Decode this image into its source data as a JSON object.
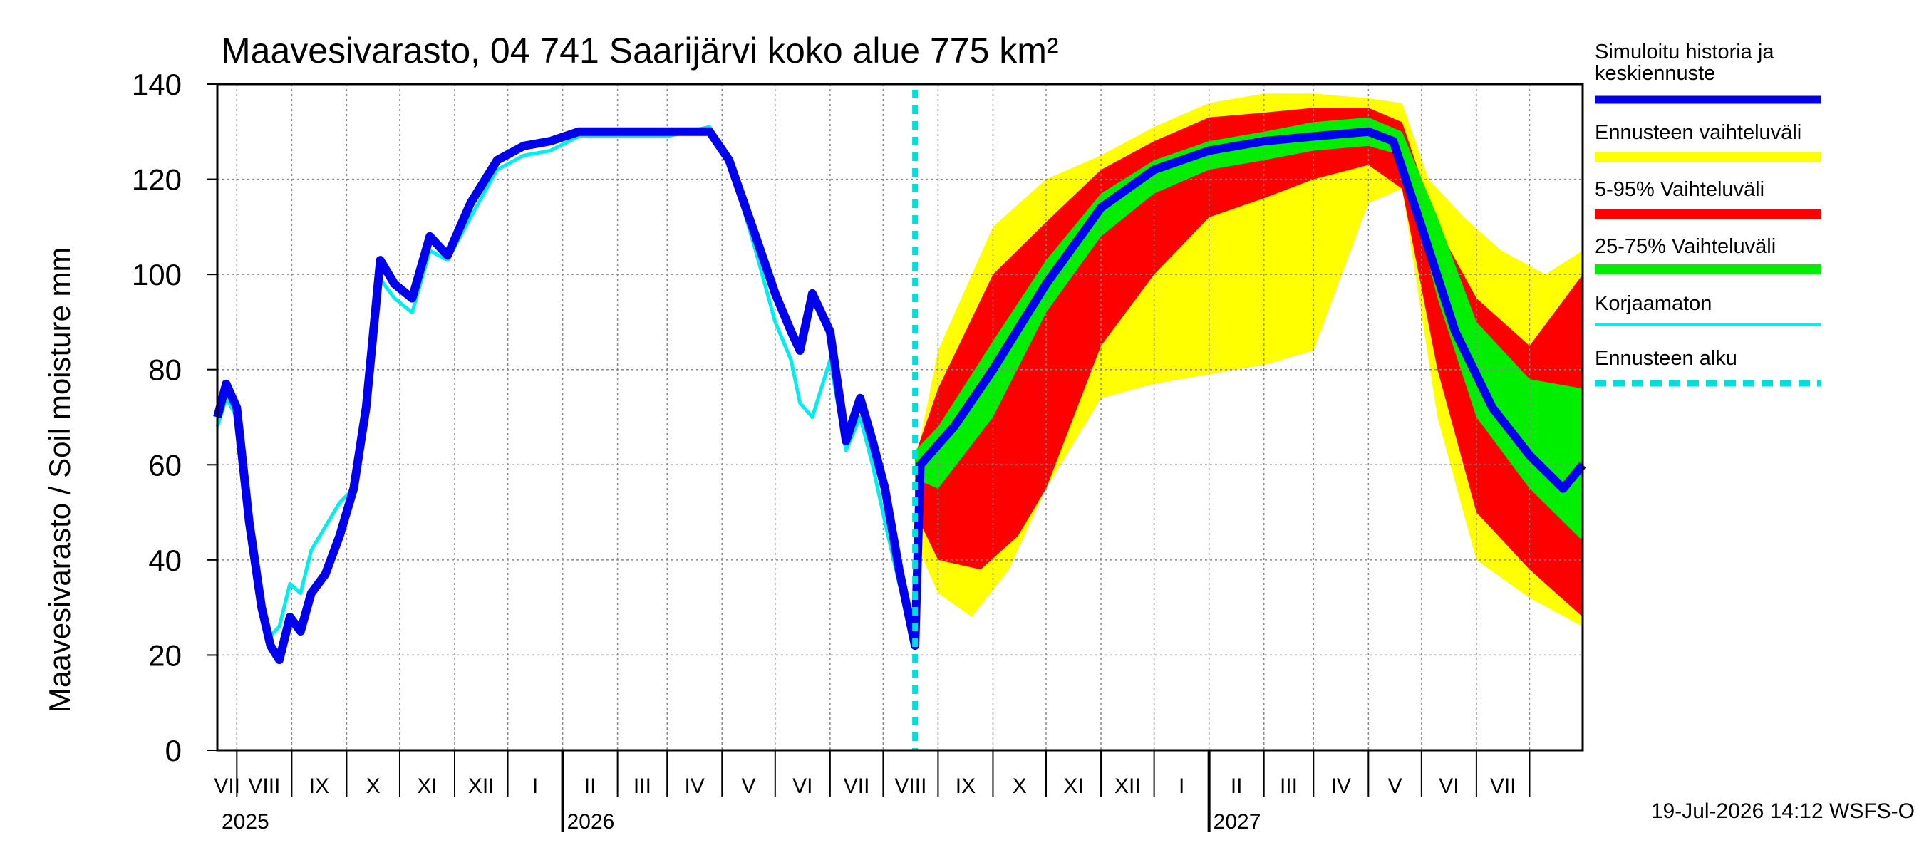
{
  "chart_data": {
    "type": "area",
    "title": "Maavesivarasto, 04 741 Saarijärvi koko alue 775 km²",
    "ylabel": "Maavesivarasto / Soil moisture   mm",
    "xlabel": "",
    "x_range": [
      "2025-06-20",
      "2027-07-31"
    ],
    "ylim": [
      0,
      140
    ],
    "yticks": [
      "0",
      "20",
      "40",
      "60",
      "80",
      "100",
      "120",
      "140"
    ],
    "months": [
      "VII",
      "VIII",
      "IX",
      "X",
      "XI",
      "XII",
      "I",
      "II",
      "III",
      "IV",
      "V",
      "VI",
      "VII",
      "VIII",
      "IX",
      "X",
      "XI",
      "XII",
      "I",
      "II",
      "III",
      "IV",
      "V",
      "VI",
      "VII"
    ],
    "years": [
      "2025",
      "2026",
      "2027"
    ],
    "grid": true,
    "legend_position": "right",
    "forecast_start": "2026-07-19",
    "series": [
      {
        "name": "Simuloitu historia ja keskiennuste",
        "color": "#0000ee",
        "points": [
          [
            "2025-06-20",
            70
          ],
          [
            "2025-06-25",
            77
          ],
          [
            "2025-07-01",
            72
          ],
          [
            "2025-07-08",
            48
          ],
          [
            "2025-07-15",
            30
          ],
          [
            "2025-07-20",
            22
          ],
          [
            "2025-07-25",
            19
          ],
          [
            "2025-07-31",
            28
          ],
          [
            "2025-08-06",
            25
          ],
          [
            "2025-08-12",
            33
          ],
          [
            "2025-08-20",
            37
          ],
          [
            "2025-08-28",
            45
          ],
          [
            "2025-09-05",
            55
          ],
          [
            "2025-09-12",
            72
          ],
          [
            "2025-09-20",
            103
          ],
          [
            "2025-09-28",
            98
          ],
          [
            "2025-10-08",
            95
          ],
          [
            "2025-10-18",
            108
          ],
          [
            "2025-10-28",
            104
          ],
          [
            "2025-11-10",
            115
          ],
          [
            "2025-11-25",
            124
          ],
          [
            "2025-12-10",
            127
          ],
          [
            "2025-12-25",
            128
          ],
          [
            "2026-01-10",
            130
          ],
          [
            "2026-02-01",
            130
          ],
          [
            "2026-03-01",
            130
          ],
          [
            "2026-03-25",
            130
          ],
          [
            "2026-04-05",
            124
          ],
          [
            "2026-04-20",
            108
          ],
          [
            "2026-05-01",
            96
          ],
          [
            "2026-05-10",
            88
          ],
          [
            "2026-05-15",
            84
          ],
          [
            "2026-05-22",
            96
          ],
          [
            "2026-06-01",
            88
          ],
          [
            "2026-06-10",
            65
          ],
          [
            "2026-06-18",
            74
          ],
          [
            "2026-06-25",
            65
          ],
          [
            "2026-07-02",
            55
          ],
          [
            "2026-07-10",
            38
          ],
          [
            "2026-07-19",
            22
          ],
          [
            "2026-07-22",
            60
          ],
          [
            "2026-08-10",
            68
          ],
          [
            "2026-09-01",
            80
          ],
          [
            "2026-10-01",
            98
          ],
          [
            "2026-11-01",
            114
          ],
          [
            "2026-12-01",
            122
          ],
          [
            "2027-01-01",
            126
          ],
          [
            "2027-02-01",
            128
          ],
          [
            "2027-03-01",
            129
          ],
          [
            "2027-04-01",
            130
          ],
          [
            "2027-04-15",
            128
          ],
          [
            "2027-05-01",
            110
          ],
          [
            "2027-05-20",
            88
          ],
          [
            "2027-06-10",
            72
          ],
          [
            "2027-07-01",
            62
          ],
          [
            "2027-07-20",
            55
          ],
          [
            "2027-07-31",
            60
          ]
        ]
      },
      {
        "name": "Ennusteen vaihteluväli",
        "color": "#ffff00",
        "upper": [
          [
            "2026-07-19",
            60
          ],
          [
            "2026-08-01",
            84
          ],
          [
            "2026-09-01",
            110
          ],
          [
            "2026-10-01",
            120
          ],
          [
            "2026-11-01",
            125
          ],
          [
            "2026-12-01",
            131
          ],
          [
            "2027-01-01",
            136
          ],
          [
            "2027-02-01",
            138
          ],
          [
            "2027-03-01",
            138
          ],
          [
            "2027-04-01",
            137
          ],
          [
            "2027-04-20",
            136
          ],
          [
            "2027-05-05",
            120
          ],
          [
            "2027-05-25",
            112
          ],
          [
            "2027-06-15",
            105
          ],
          [
            "2027-07-10",
            100
          ],
          [
            "2027-07-31",
            105
          ]
        ],
        "lower": [
          [
            "2026-07-19",
            44
          ],
          [
            "2026-08-01",
            33
          ],
          [
            "2026-08-20",
            28
          ],
          [
            "2026-09-10",
            38
          ],
          [
            "2026-10-01",
            55
          ],
          [
            "2026-11-01",
            74
          ],
          [
            "2026-12-01",
            77
          ],
          [
            "2027-01-01",
            79
          ],
          [
            "2027-02-01",
            81
          ],
          [
            "2027-03-01",
            84
          ],
          [
            "2027-04-01",
            115
          ],
          [
            "2027-04-20",
            118
          ],
          [
            "2027-05-10",
            70
          ],
          [
            "2027-06-01",
            40
          ],
          [
            "2027-07-01",
            32
          ],
          [
            "2027-07-31",
            26
          ]
        ]
      },
      {
        "name": "5-95% Vaihteluväli",
        "color": "#ff0000",
        "upper": [
          [
            "2026-07-19",
            62
          ],
          [
            "2026-08-01",
            76
          ],
          [
            "2026-09-01",
            100
          ],
          [
            "2026-10-01",
            111
          ],
          [
            "2026-11-01",
            122
          ],
          [
            "2026-12-01",
            128
          ],
          [
            "2027-01-01",
            133
          ],
          [
            "2027-02-01",
            134
          ],
          [
            "2027-03-01",
            135
          ],
          [
            "2027-04-01",
            135
          ],
          [
            "2027-04-20",
            132
          ],
          [
            "2027-05-10",
            110
          ],
          [
            "2027-06-01",
            95
          ],
          [
            "2027-07-01",
            85
          ],
          [
            "2027-07-31",
            100
          ]
        ],
        "lower": [
          [
            "2026-07-19",
            50
          ],
          [
            "2026-08-01",
            40
          ],
          [
            "2026-08-25",
            38
          ],
          [
            "2026-09-15",
            45
          ],
          [
            "2026-10-01",
            55
          ],
          [
            "2026-11-01",
            85
          ],
          [
            "2026-12-01",
            100
          ],
          [
            "2027-01-01",
            112
          ],
          [
            "2027-02-01",
            116
          ],
          [
            "2027-03-01",
            120
          ],
          [
            "2027-04-01",
            123
          ],
          [
            "2027-04-20",
            118
          ],
          [
            "2027-05-10",
            80
          ],
          [
            "2027-06-01",
            50
          ],
          [
            "2027-07-01",
            38
          ],
          [
            "2027-07-31",
            28
          ]
        ]
      },
      {
        "name": "25-75% Vaihteluväli",
        "color": "#00ee00",
        "upper": [
          [
            "2026-07-19",
            63
          ],
          [
            "2026-08-01",
            68
          ],
          [
            "2026-09-01",
            86
          ],
          [
            "2026-10-01",
            103
          ],
          [
            "2026-11-01",
            117
          ],
          [
            "2026-12-01",
            124
          ],
          [
            "2027-01-01",
            128
          ],
          [
            "2027-02-01",
            130
          ],
          [
            "2027-03-01",
            132
          ],
          [
            "2027-04-01",
            133
          ],
          [
            "2027-04-20",
            130
          ],
          [
            "2027-05-10",
            112
          ],
          [
            "2027-06-01",
            90
          ],
          [
            "2027-07-01",
            78
          ],
          [
            "2027-07-31",
            76
          ]
        ],
        "lower": [
          [
            "2026-07-19",
            57
          ],
          [
            "2026-08-01",
            55
          ],
          [
            "2026-09-01",
            70
          ],
          [
            "2026-10-01",
            92
          ],
          [
            "2026-11-01",
            108
          ],
          [
            "2026-12-01",
            117
          ],
          [
            "2027-01-01",
            122
          ],
          [
            "2027-02-01",
            124
          ],
          [
            "2027-03-01",
            126
          ],
          [
            "2027-04-01",
            127
          ],
          [
            "2027-04-20",
            125
          ],
          [
            "2027-05-10",
            95
          ],
          [
            "2027-06-01",
            70
          ],
          [
            "2027-07-01",
            55
          ],
          [
            "2027-07-31",
            44
          ]
        ]
      },
      {
        "name": "Korjaamaton",
        "color": "#00eeee",
        "points": [
          [
            "2025-06-20",
            68
          ],
          [
            "2025-06-25",
            74
          ],
          [
            "2025-07-01",
            70
          ],
          [
            "2025-07-08",
            45
          ],
          [
            "2025-07-15",
            28
          ],
          [
            "2025-07-20",
            24
          ],
          [
            "2025-07-25",
            26
          ],
          [
            "2025-07-31",
            35
          ],
          [
            "2025-08-06",
            33
          ],
          [
            "2025-08-12",
            42
          ],
          [
            "2025-08-20",
            47
          ],
          [
            "2025-08-28",
            52
          ],
          [
            "2025-09-05",
            55
          ],
          [
            "2025-09-12",
            72
          ],
          [
            "2025-09-20",
            99
          ],
          [
            "2025-09-28",
            95
          ],
          [
            "2025-10-08",
            92
          ],
          [
            "2025-10-18",
            105
          ],
          [
            "2025-10-28",
            103
          ],
          [
            "2025-11-10",
            112
          ],
          [
            "2025-11-25",
            122
          ],
          [
            "2025-12-10",
            125
          ],
          [
            "2025-12-25",
            126
          ],
          [
            "2026-01-10",
            129
          ],
          [
            "2026-02-01",
            129
          ],
          [
            "2026-03-01",
            129
          ],
          [
            "2026-03-25",
            131
          ],
          [
            "2026-04-05",
            124
          ],
          [
            "2026-04-20",
            105
          ],
          [
            "2026-05-01",
            90
          ],
          [
            "2026-05-10",
            82
          ],
          [
            "2026-05-15",
            73
          ],
          [
            "2026-05-22",
            70
          ],
          [
            "2026-06-01",
            82
          ],
          [
            "2026-06-10",
            63
          ],
          [
            "2026-06-18",
            70
          ],
          [
            "2026-06-25",
            60
          ],
          [
            "2026-07-02",
            48
          ],
          [
            "2026-07-10",
            35
          ],
          [
            "2026-07-19",
            25
          ]
        ]
      },
      {
        "name": "Ennusteen alku",
        "color": "#00dddd"
      }
    ]
  },
  "footer": "19-Jul-2026 14:12 WSFS-O"
}
